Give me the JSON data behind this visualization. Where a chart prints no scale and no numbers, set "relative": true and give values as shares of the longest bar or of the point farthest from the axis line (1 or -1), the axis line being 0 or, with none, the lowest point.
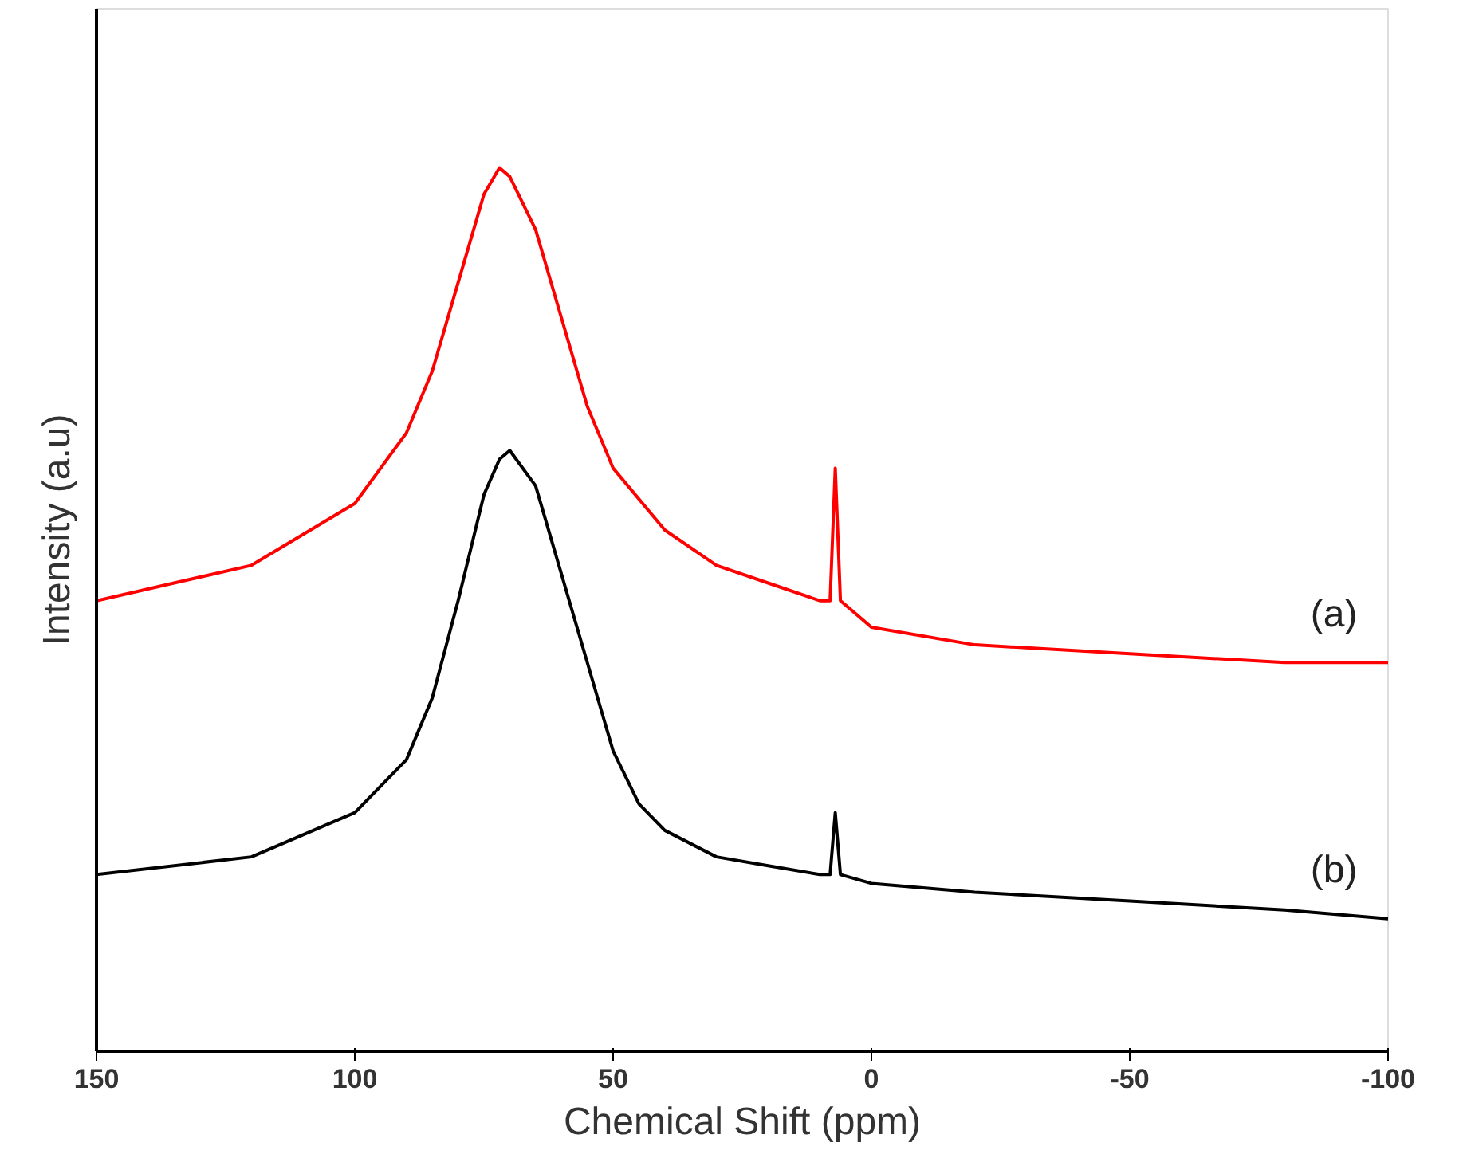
{
  "chart_data": {
    "type": "line",
    "xlabel": "Chemical Shift (ppm)",
    "ylabel": "Intensity (a.u)",
    "relative": true,
    "xlim": [
      150,
      -100
    ],
    "xticks": [
      150,
      100,
      50,
      0,
      -50,
      -100
    ],
    "tick_labels": "x",
    "grid": false,
    "series": [
      {
        "name": "(a)",
        "color": "#ff0000",
        "x": [
          150,
          120,
          100,
          90,
          85,
          80,
          75,
          72,
          70,
          65,
          60,
          55,
          50,
          40,
          30,
          20,
          10,
          8,
          7,
          6,
          0,
          -20,
          -50,
          -80,
          -100
        ],
        "values": [
          0.51,
          0.55,
          0.62,
          0.7,
          0.77,
          0.87,
          0.97,
          1.0,
          0.99,
          0.93,
          0.83,
          0.73,
          0.66,
          0.59,
          0.55,
          0.53,
          0.51,
          0.51,
          0.66,
          0.51,
          0.48,
          0.46,
          0.45,
          0.44,
          0.44
        ]
      },
      {
        "name": "(b)",
        "color": "#000000",
        "x": [
          150,
          120,
          100,
          90,
          85,
          80,
          75,
          72,
          70,
          65,
          60,
          55,
          50,
          45,
          40,
          30,
          20,
          10,
          8,
          7,
          6,
          0,
          -20,
          -50,
          -80,
          -100
        ],
        "values": [
          0.2,
          0.22,
          0.27,
          0.33,
          0.4,
          0.51,
          0.63,
          0.67,
          0.68,
          0.64,
          0.54,
          0.44,
          0.34,
          0.28,
          0.25,
          0.22,
          0.21,
          0.2,
          0.2,
          0.27,
          0.2,
          0.19,
          0.18,
          0.17,
          0.16,
          0.15
        ]
      }
    ]
  }
}
